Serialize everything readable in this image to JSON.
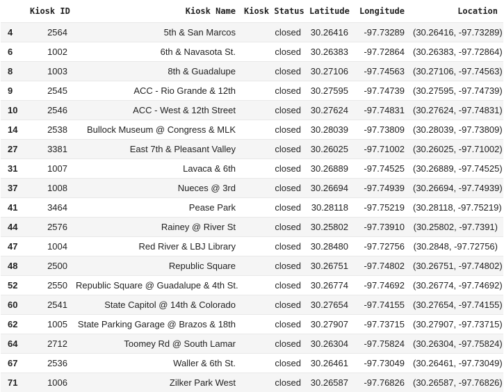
{
  "columns": [
    "",
    "Kiosk ID",
    "Kiosk Name",
    "Kiosk Status",
    "Latitude",
    "Longitude",
    "Location"
  ],
  "rows": [
    [
      "4",
      "2564",
      "5th & San Marcos",
      "closed",
      "30.26416",
      "-97.73289",
      "(30.26416, -97.73289)"
    ],
    [
      "6",
      "1002",
      "6th & Navasota St.",
      "closed",
      "30.26383",
      "-97.72864",
      "(30.26383, -97.72864)"
    ],
    [
      "8",
      "1003",
      "8th & Guadalupe",
      "closed",
      "30.27106",
      "-97.74563",
      "(30.27106, -97.74563)"
    ],
    [
      "9",
      "2545",
      "ACC - Rio Grande & 12th",
      "closed",
      "30.27595",
      "-97.74739",
      "(30.27595, -97.74739)"
    ],
    [
      "10",
      "2546",
      "ACC - West & 12th Street",
      "closed",
      "30.27624",
      "-97.74831",
      "(30.27624, -97.74831)"
    ],
    [
      "14",
      "2538",
      "Bullock Museum @ Congress & MLK",
      "closed",
      "30.28039",
      "-97.73809",
      "(30.28039, -97.73809)"
    ],
    [
      "27",
      "3381",
      "East 7th & Pleasant Valley",
      "closed",
      "30.26025",
      "-97.71002",
      "(30.26025, -97.71002)"
    ],
    [
      "31",
      "1007",
      "Lavaca & 6th",
      "closed",
      "30.26889",
      "-97.74525",
      "(30.26889, -97.74525)"
    ],
    [
      "37",
      "1008",
      "Nueces @ 3rd",
      "closed",
      "30.26694",
      "-97.74939",
      "(30.26694, -97.74939)"
    ],
    [
      "41",
      "3464",
      "Pease Park",
      "closed",
      "30.28118",
      "-97.75219",
      "(30.28118, -97.75219)"
    ],
    [
      "44",
      "2576",
      "Rainey @ River St",
      "closed",
      "30.25802",
      "-97.73910",
      "(30.25802, -97.7391)"
    ],
    [
      "47",
      "1004",
      "Red River & LBJ Library",
      "closed",
      "30.28480",
      "-97.72756",
      "(30.2848, -97.72756)"
    ],
    [
      "48",
      "2500",
      "Republic Square",
      "closed",
      "30.26751",
      "-97.74802",
      "(30.26751, -97.74802)"
    ],
    [
      "52",
      "2550",
      "Republic Square @ Guadalupe & 4th St.",
      "closed",
      "30.26774",
      "-97.74692",
      "(30.26774, -97.74692)"
    ],
    [
      "60",
      "2541",
      "State Capitol @ 14th & Colorado",
      "closed",
      "30.27654",
      "-97.74155",
      "(30.27654, -97.74155)"
    ],
    [
      "62",
      "1005",
      "State Parking Garage @ Brazos & 18th",
      "closed",
      "30.27907",
      "-97.73715",
      "(30.27907, -97.73715)"
    ],
    [
      "64",
      "2712",
      "Toomey Rd @ South Lamar",
      "closed",
      "30.26304",
      "-97.75824",
      "(30.26304, -97.75824)"
    ],
    [
      "67",
      "2536",
      "Waller & 6th St.",
      "closed",
      "30.26461",
      "-97.73049",
      "(30.26461, -97.73049)"
    ],
    [
      "71",
      "1006",
      "Zilker Park West",
      "closed",
      "30.26587",
      "-97.76826",
      "(30.26587, -97.76826)"
    ]
  ]
}
